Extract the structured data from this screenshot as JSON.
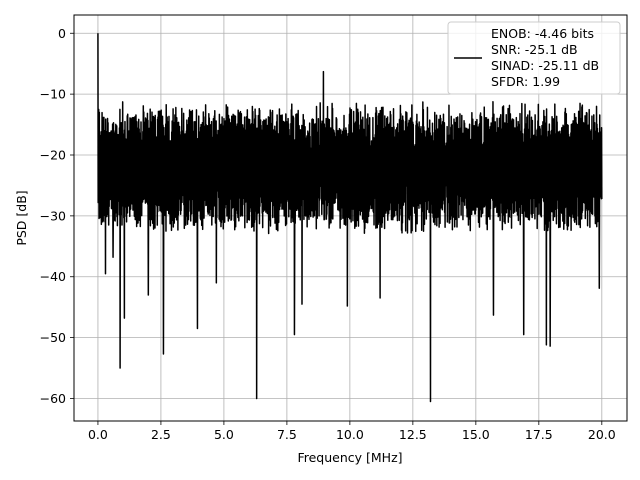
{
  "chart_data": {
    "type": "line",
    "title": "",
    "xlabel": "Frequency [MHz]",
    "ylabel": "PSD [dB]",
    "xlim": [
      -0.95,
      21.0
    ],
    "ylim": [
      -63.7,
      3.0
    ],
    "xticks": [
      0.0,
      2.5,
      5.0,
      7.5,
      10.0,
      12.5,
      15.0,
      17.5,
      20.0
    ],
    "xtick_labels": [
      "0.0",
      "2.5",
      "5.0",
      "7.5",
      "10.0",
      "12.5",
      "15.0",
      "17.5",
      "20.0"
    ],
    "yticks": [
      0,
      -10,
      -20,
      -30,
      -40,
      -50,
      -60
    ],
    "ytick_labels": [
      "0",
      "−10",
      "−20",
      "−30",
      "−40",
      "−50",
      "−60"
    ],
    "grid": true,
    "legend_position": "top-right",
    "series": [
      {
        "name": "",
        "color": "#000000",
        "x_range": [
          0.0,
          20.0
        ],
        "noise_floor_band_db": [
          -35,
          -11
        ],
        "notable_points": [
          {
            "x": 0.0,
            "y": 0.0
          },
          {
            "x": 0.03,
            "y": -12.5
          },
          {
            "x": 0.3,
            "y": -39.5
          },
          {
            "x": 0.6,
            "y": -36.8
          },
          {
            "x": 0.88,
            "y": -55.0
          },
          {
            "x": 1.05,
            "y": -46.8
          },
          {
            "x": 2.0,
            "y": -43.0
          },
          {
            "x": 2.6,
            "y": -52.7
          },
          {
            "x": 3.95,
            "y": -48.5
          },
          {
            "x": 4.7,
            "y": -41.0
          },
          {
            "x": 6.3,
            "y": -60.0
          },
          {
            "x": 7.8,
            "y": -49.5
          },
          {
            "x": 8.1,
            "y": -44.5
          },
          {
            "x": 9.9,
            "y": -44.8
          },
          {
            "x": 11.2,
            "y": -43.5
          },
          {
            "x": 13.2,
            "y": -60.5
          },
          {
            "x": 15.7,
            "y": -46.3
          },
          {
            "x": 16.9,
            "y": -49.5
          },
          {
            "x": 17.8,
            "y": -51.2
          },
          {
            "x": 17.95,
            "y": -51.4
          },
          {
            "x": 19.9,
            "y": -41.9
          },
          {
            "x": 8.95,
            "y": -6.3
          }
        ]
      }
    ],
    "legend_entries": [
      "ENOB: -4.46 bits",
      "SNR: -25.1 dB",
      "SINAD: -25.11 dB",
      "SFDR: 1.99"
    ]
  }
}
